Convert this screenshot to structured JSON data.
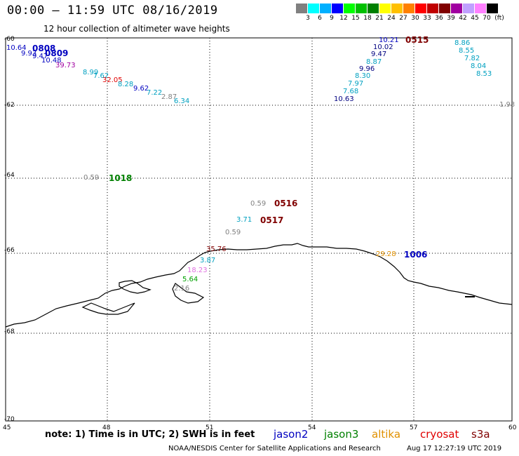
{
  "header": {
    "title": "00:00 – 11:59 UTC 08/16/2019",
    "subtitle": "12 hour collection of altimeter wave heights"
  },
  "colorbar": {
    "unit": "(ft)",
    "ticks": [
      "3",
      "6",
      "9",
      "12",
      "15",
      "18",
      "21",
      "24",
      "27",
      "30",
      "33",
      "36",
      "39",
      "42",
      "45",
      "70"
    ],
    "colors": [
      "#808080",
      "#00ffff",
      "#00b0ff",
      "#0000ff",
      "#00ff00",
      "#00c000",
      "#008000",
      "#ffff00",
      "#ffc000",
      "#ff8000",
      "#ff0000",
      "#c00000",
      "#800000",
      "#a000a0",
      "#c0a0ff",
      "#ff80ff",
      "#000000"
    ]
  },
  "axes": {
    "lat_labels": [
      "-60",
      "-62",
      "-64",
      "-66",
      "-68",
      "-70"
    ],
    "lon_labels": [
      "45",
      "48",
      "51",
      "54",
      "57",
      "60"
    ]
  },
  "colors": {
    "gray": "#808080",
    "cyan": "#00a0c0",
    "blue": "#0000c0",
    "navy": "#000080",
    "green": "#008000",
    "lime": "#00a000",
    "orange": "#e09000",
    "red": "#e00000",
    "darkred": "#800000",
    "purple": "#a000a0",
    "pink": "#e070e0",
    "maroon": "#800000"
  },
  "measurements": [
    {
      "text": "10.64",
      "color": "blue"
    },
    {
      "text": "9.93",
      "color": "blue"
    },
    {
      "text": "9.47",
      "color": "blue"
    },
    {
      "text": "10.48",
      "color": "blue"
    },
    {
      "text": "39.73",
      "color": "purple"
    },
    {
      "text": "8.99",
      "color": "cyan"
    },
    {
      "text": "7.62",
      "color": "cyan"
    },
    {
      "text": "32.05",
      "color": "red"
    },
    {
      "text": "8.28",
      "color": "cyan"
    },
    {
      "text": "9.62",
      "color": "blue"
    },
    {
      "text": "7.22",
      "color": "cyan"
    },
    {
      "text": "2.87",
      "color": "gray"
    },
    {
      "text": "6.34",
      "color": "cyan"
    },
    {
      "text": "10.21",
      "color": "blue"
    },
    {
      "text": "10.02",
      "color": "navy"
    },
    {
      "text": "9.47",
      "color": "navy"
    },
    {
      "text": "8.87",
      "color": "cyan"
    },
    {
      "text": "9.96",
      "color": "navy"
    },
    {
      "text": "8.30",
      "color": "cyan"
    },
    {
      "text": "7.97",
      "color": "cyan"
    },
    {
      "text": "7.68",
      "color": "cyan"
    },
    {
      "text": "10.63",
      "color": "navy"
    },
    {
      "text": "8.86",
      "color": "cyan"
    },
    {
      "text": "8.55",
      "color": "cyan"
    },
    {
      "text": "7.82",
      "color": "cyan"
    },
    {
      "text": "8.04",
      "color": "cyan"
    },
    {
      "text": "8.53",
      "color": "cyan"
    },
    {
      "text": "1.93",
      "color": "gray"
    },
    {
      "text": "0.59",
      "color": "gray"
    },
    {
      "text": "0.59",
      "color": "gray"
    },
    {
      "text": "3.71",
      "color": "cyan"
    },
    {
      "text": "0.59",
      "color": "gray"
    },
    {
      "text": "35.76",
      "color": "darkred"
    },
    {
      "text": "3.87",
      "color": "cyan"
    },
    {
      "text": "18.23",
      "color": "pink"
    },
    {
      "text": "5.64",
      "color": "lime"
    },
    {
      "text": "2.16",
      "color": "gray"
    },
    {
      "text": "29.28",
      "color": "orange"
    }
  ],
  "pass_times": [
    {
      "text": "0808",
      "color": "blue"
    },
    {
      "text": "0809",
      "color": "blue"
    },
    {
      "text": "0515",
      "color": "maroon"
    },
    {
      "text": "1018",
      "color": "green"
    },
    {
      "text": "0516",
      "color": "maroon"
    },
    {
      "text": "0517",
      "color": "maroon"
    },
    {
      "text": "1006",
      "color": "blue"
    }
  ],
  "note": "note: 1) Time is in UTC; 2) SWH is in feet",
  "satellites": [
    {
      "name": "jason2",
      "color": "#0000c0"
    },
    {
      "name": "jason3",
      "color": "#008000"
    },
    {
      "name": "altika",
      "color": "#e09000"
    },
    {
      "name": "cryosat",
      "color": "#e00000"
    },
    {
      "name": "s3a",
      "color": "#800000"
    }
  ],
  "footer": {
    "credit": "NOAA/NESDIS Center for Satellite Applications and Research",
    "timestamp": "Aug 17 12:27:19 UTC 2019"
  }
}
